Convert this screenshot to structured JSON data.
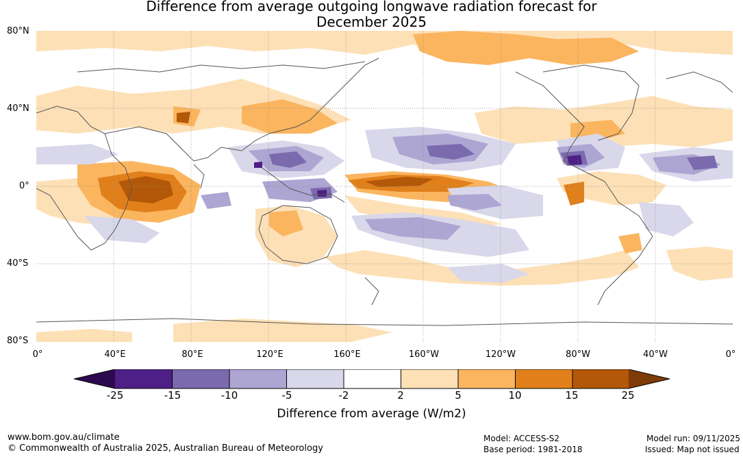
{
  "title": {
    "line1": "Difference from average outgoing longwave radiation forecast for",
    "line2": "December 2025"
  },
  "map": {
    "lat_labels": [
      "80°N",
      "40°N",
      "0°",
      "40°S",
      "80°S"
    ],
    "lon_labels": [
      "0°",
      "40°E",
      "80°E",
      "120°E",
      "160°E",
      "160°W",
      "120°W",
      "80°W",
      "40°W",
      "0°"
    ]
  },
  "legend": {
    "label": "Difference from average (W/m2)",
    "ticks": [
      "-25",
      "-15",
      "-10",
      "-5",
      "-2",
      "2",
      "5",
      "10",
      "15",
      "25"
    ],
    "colors": {
      "below_min": "#2d0a4f",
      "c1": "#4e1f86",
      "c2": "#7b6aae",
      "c3": "#ada5d2",
      "c4": "#d9d7ea",
      "neutral": "#ffffff",
      "w1": "#fde0b6",
      "w2": "#fbb55f",
      "w3": "#e1801b",
      "w4": "#b35808",
      "above_max": "#7f3b08"
    }
  },
  "footer": {
    "website": "www.bom.gov.au/climate",
    "copyright": "© Commonwealth of Australia 2025, Australian Bureau of Meteorology",
    "model": "Model: ACCESS-S2",
    "base_period": "Base period: 1981-2018",
    "model_run": "Model run: 09/11/2025",
    "issued": "Issued: Map not issued"
  }
}
